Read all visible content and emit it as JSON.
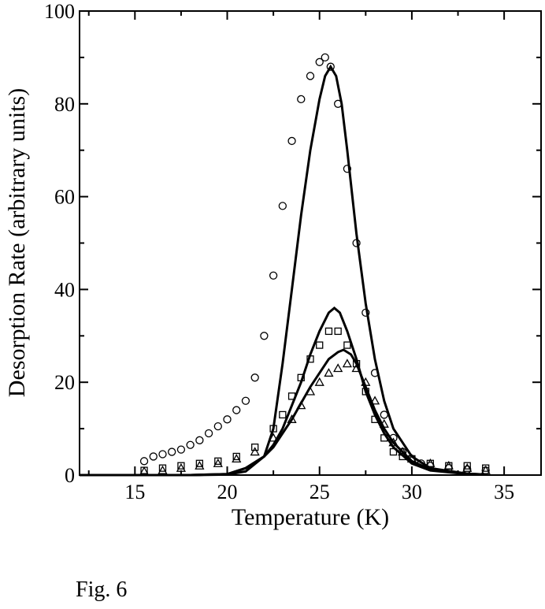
{
  "chart_data": {
    "type": "scatter",
    "xlabel": "Temperature (K)",
    "ylabel": "Desorption Rate (arbitrary units)",
    "xlim": [
      12,
      37
    ],
    "ylim": [
      0,
      100
    ],
    "xticks": [
      15,
      20,
      25,
      30,
      35
    ],
    "yticks": [
      0,
      20,
      40,
      60,
      80,
      100
    ],
    "grid": false,
    "marker_color": "#000000",
    "series": [
      {
        "marker": "circle",
        "kind": "data",
        "x": [
          15.5,
          16.0,
          16.5,
          17.0,
          17.5,
          18.0,
          18.5,
          19.0,
          19.5,
          20.0,
          20.5,
          21.0,
          21.5,
          22.0,
          22.5,
          23.0,
          23.5,
          24.0,
          24.5,
          25.0,
          25.3,
          25.6,
          26.0,
          26.5,
          27.0,
          27.5,
          28.0,
          28.5,
          29.0,
          29.5,
          30.0,
          30.5,
          31.0,
          32.0,
          33.0,
          34.0
        ],
        "y": [
          3,
          4,
          4.5,
          5,
          5.5,
          6.5,
          7.5,
          9,
          10.5,
          12,
          14,
          16,
          21,
          30,
          43,
          58,
          72,
          81,
          86,
          89,
          90,
          88,
          80,
          66,
          50,
          35,
          22,
          13,
          8,
          5,
          3.5,
          2.5,
          2,
          1.5,
          1.2,
          1
        ]
      },
      {
        "marker": "square",
        "kind": "data",
        "x": [
          15.5,
          16.5,
          17.5,
          18.5,
          19.5,
          20.5,
          21.5,
          22.5,
          23.0,
          23.5,
          24.0,
          24.5,
          25.0,
          25.5,
          26.0,
          26.5,
          27.0,
          27.5,
          28.0,
          28.5,
          29.0,
          29.5,
          30.0,
          31.0,
          32.0,
          33.0,
          34.0
        ],
        "y": [
          1,
          1.5,
          2,
          2.5,
          3,
          4,
          6,
          10,
          13,
          17,
          21,
          25,
          28,
          31,
          31,
          28,
          24,
          18,
          12,
          8,
          5,
          4,
          3.5,
          2.5,
          2,
          2,
          1.5
        ]
      },
      {
        "marker": "triangle",
        "kind": "data",
        "x": [
          15.5,
          16.5,
          17.5,
          18.5,
          19.5,
          20.5,
          21.5,
          22.5,
          23.5,
          24.0,
          24.5,
          25.0,
          25.5,
          26.0,
          26.5,
          27.0,
          27.5,
          28.0,
          28.5,
          29.0,
          29.5,
          30.0,
          31.0,
          32.0,
          33.0,
          34.0
        ],
        "y": [
          0.8,
          1,
          1.5,
          2,
          2.5,
          3.5,
          5,
          8,
          12,
          15,
          18,
          20,
          22,
          23,
          24,
          23,
          20,
          16,
          11,
          7,
          5,
          3.5,
          2.5,
          2,
          1.5,
          1
        ]
      },
      {
        "marker": "none",
        "kind": "fit",
        "x": [
          12,
          15,
          18,
          20,
          21,
          22,
          22.5,
          23,
          23.5,
          24,
          24.5,
          25,
          25.3,
          25.6,
          25.9,
          26.2,
          26.5,
          27,
          27.5,
          28,
          28.5,
          29,
          30,
          31,
          33,
          34
        ],
        "y": [
          0,
          0,
          0,
          0.1,
          0.8,
          4,
          10,
          24,
          40,
          56,
          70,
          81,
          86,
          88,
          86,
          80,
          70,
          52,
          37,
          25,
          16,
          10,
          4,
          1.5,
          0.3,
          0.1
        ]
      },
      {
        "marker": "none",
        "kind": "fit",
        "x": [
          12,
          18,
          20,
          21,
          22,
          22.5,
          23,
          23.5,
          24,
          24.5,
          25,
          25.5,
          25.8,
          26.1,
          26.5,
          27,
          27.5,
          28,
          28.5,
          29,
          30,
          31,
          33,
          34
        ],
        "y": [
          0,
          0,
          0.2,
          1.5,
          4,
          6.5,
          10,
          15,
          20,
          26,
          31,
          35,
          36,
          35,
          31,
          25,
          18,
          13,
          9,
          6,
          2.5,
          1,
          0.2,
          0.1
        ]
      },
      {
        "marker": "none",
        "kind": "fit",
        "x": [
          12,
          18,
          20,
          21,
          22,
          22.5,
          23,
          23.5,
          24,
          24.5,
          25,
          25.5,
          26.0,
          26.3,
          26.7,
          27,
          27.5,
          28,
          28.5,
          29,
          30,
          31,
          33,
          34
        ],
        "y": [
          0,
          0,
          0.2,
          1.5,
          4,
          6,
          9,
          12,
          15.5,
          19,
          22,
          25,
          26.5,
          27,
          26,
          24,
          19,
          14,
          10,
          7,
          3,
          1.2,
          0.3,
          0.1
        ]
      }
    ]
  },
  "caption": "Fig. 6"
}
